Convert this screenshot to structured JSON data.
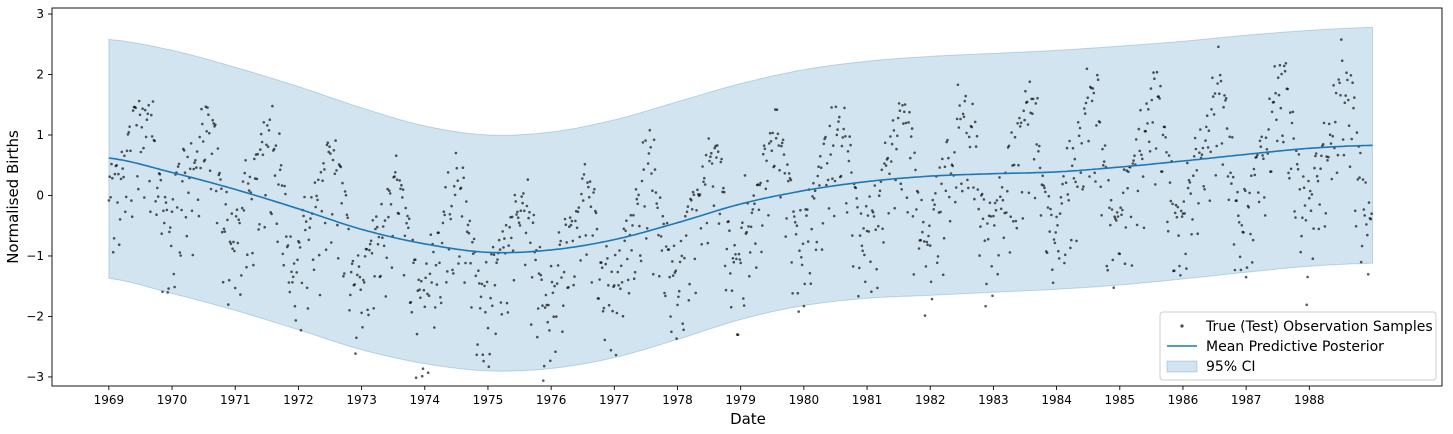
{
  "chart_data": {
    "type": "line",
    "xlabel": "Date",
    "ylabel": "Normalised Births",
    "xlim": [
      1968.1,
      1990.1
    ],
    "ylim": [
      -3.15,
      3.1
    ],
    "x_ticks": [
      1969,
      1970,
      1971,
      1972,
      1973,
      1974,
      1975,
      1976,
      1977,
      1978,
      1979,
      1980,
      1981,
      1982,
      1983,
      1984,
      1985,
      1986,
      1987,
      1988
    ],
    "x_tick_labels": [
      "1969",
      "1970",
      "1971",
      "1972",
      "1973",
      "1974",
      "1975",
      "1976",
      "1977",
      "1978",
      "1979",
      "1980",
      "1981",
      "1982",
      "1983",
      "1984",
      "1985",
      "1986",
      "1987",
      "1988"
    ],
    "y_ticks": [
      -3,
      -2,
      -1,
      0,
      1,
      2,
      3
    ],
    "y_tick_labels": [
      "−3",
      "−2",
      "−1",
      "0",
      "1",
      "2",
      "3"
    ],
    "grid": false,
    "legend_position": "lower-right",
    "legend": [
      {
        "label": "True (Test) Observation Samples",
        "kind": "points"
      },
      {
        "label": "Mean Predictive Posterior",
        "kind": "line"
      },
      {
        "label": "95% CI",
        "kind": "band"
      }
    ],
    "colors": {
      "points": "#000000",
      "mean": "#1f77b4",
      "band": "#1f77b4"
    },
    "mean": {
      "x": [
        1969.0,
        1970.0,
        1971.0,
        1972.0,
        1973.0,
        1974.0,
        1975.0,
        1976.0,
        1977.0,
        1978.0,
        1979.0,
        1980.0,
        1981.0,
        1982.0,
        1983.0,
        1984.0,
        1985.0,
        1986.0,
        1987.0,
        1988.0,
        1989.0
      ],
      "y": [
        0.62,
        0.38,
        0.1,
        -0.22,
        -0.56,
        -0.8,
        -0.94,
        -0.9,
        -0.73,
        -0.45,
        -0.14,
        0.08,
        0.23,
        0.32,
        0.36,
        0.39,
        0.47,
        0.57,
        0.68,
        0.78,
        0.83
      ]
    },
    "ci_upper": {
      "x": [
        1969.0,
        1970.0,
        1971.0,
        1972.0,
        1973.0,
        1974.0,
        1975.0,
        1976.0,
        1977.0,
        1978.0,
        1979.0,
        1980.0,
        1981.0,
        1982.0,
        1983.0,
        1984.0,
        1985.0,
        1986.0,
        1987.0,
        1988.0,
        1989.0
      ],
      "y": [
        2.58,
        2.4,
        2.12,
        1.8,
        1.45,
        1.15,
        1.0,
        1.05,
        1.25,
        1.55,
        1.85,
        2.08,
        2.22,
        2.3,
        2.35,
        2.4,
        2.47,
        2.55,
        2.65,
        2.73,
        2.78
      ]
    },
    "ci_lower": {
      "x": [
        1969.0,
        1970.0,
        1971.0,
        1972.0,
        1973.0,
        1974.0,
        1975.0,
        1976.0,
        1977.0,
        1978.0,
        1979.0,
        1980.0,
        1981.0,
        1982.0,
        1983.0,
        1984.0,
        1985.0,
        1986.0,
        1987.0,
        1988.0,
        1989.0
      ],
      "y": [
        -1.37,
        -1.62,
        -1.9,
        -2.22,
        -2.55,
        -2.78,
        -2.9,
        -2.86,
        -2.68,
        -2.38,
        -2.05,
        -1.82,
        -1.7,
        -1.65,
        -1.6,
        -1.55,
        -1.48,
        -1.38,
        -1.27,
        -1.17,
        -1.12
      ]
    },
    "samples": {
      "description_of_pattern": "",
      "x_start": 1969.0,
      "x_end": 1989.0,
      "count": 1460
    }
  }
}
